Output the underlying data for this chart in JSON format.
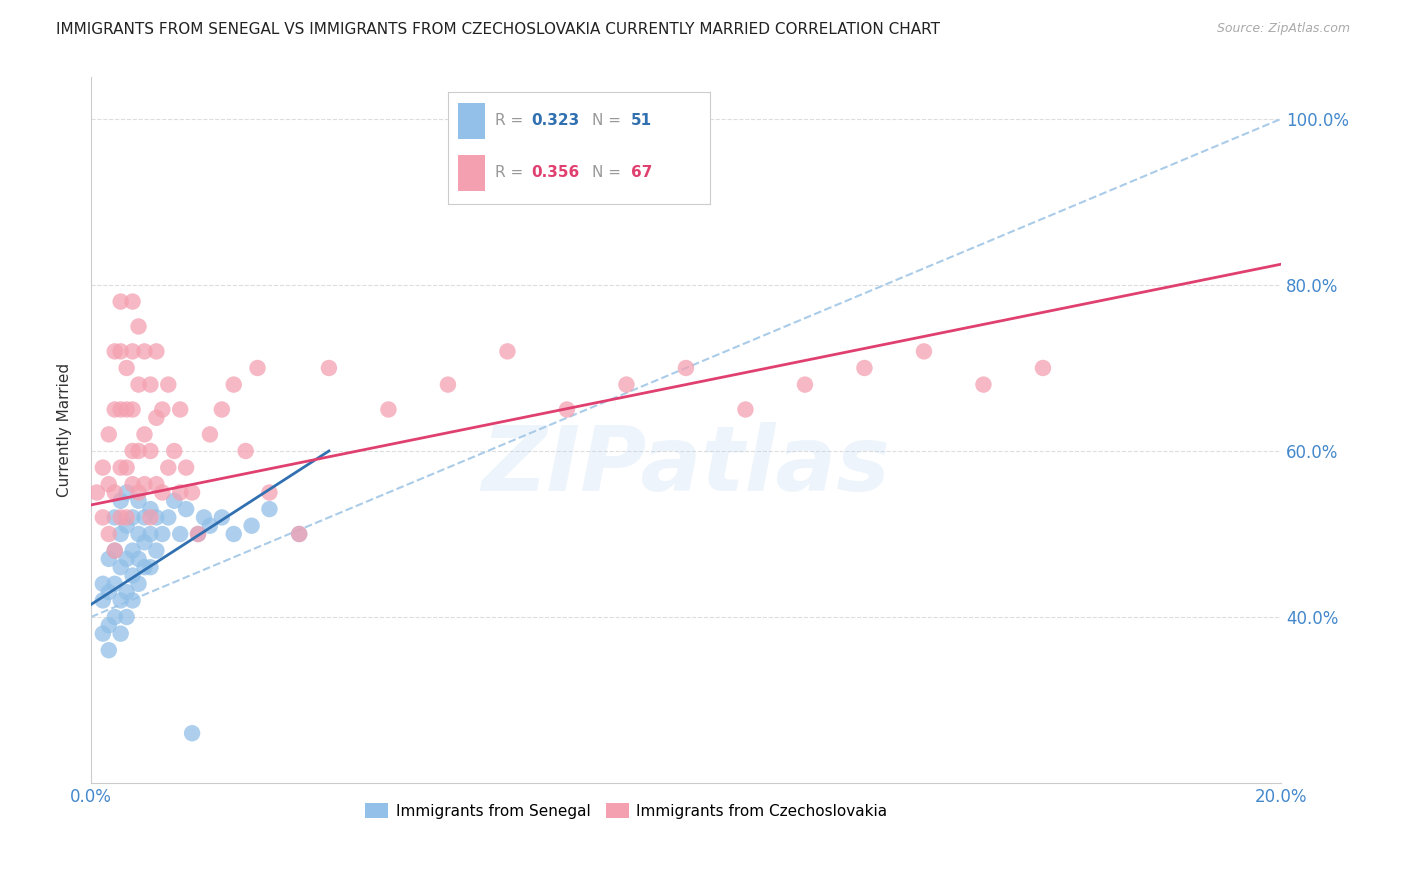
{
  "title": "IMMIGRANTS FROM SENEGAL VS IMMIGRANTS FROM CZECHOSLOVAKIA CURRENTLY MARRIED CORRELATION CHART",
  "source": "Source: ZipAtlas.com",
  "ylabel": "Currently Married",
  "xlim": [
    0.0,
    0.2
  ],
  "ylim": [
    0.2,
    1.05
  ],
  "xticks": [
    0.0,
    0.04,
    0.08,
    0.12,
    0.16,
    0.2
  ],
  "xtick_labels": [
    "0.0%",
    "",
    "",
    "",
    "",
    "20.0%"
  ],
  "ytick_labels_right": [
    "100.0%",
    "80.0%",
    "60.0%",
    "40.0%"
  ],
  "yticks_right": [
    1.0,
    0.8,
    0.6,
    0.4
  ],
  "blue_R": 0.323,
  "blue_N": 51,
  "pink_R": 0.356,
  "pink_N": 67,
  "blue_color": "#92C0E8",
  "pink_color": "#F4A0B0",
  "blue_line_color": "#3070B0",
  "pink_line_color": "#E04070",
  "dashed_line_color": "#AACCE8",
  "legend_label_blue": "Immigrants from Senegal",
  "legend_label_pink": "Immigrants from Czechoslovakia",
  "watermark": "ZIPatlas",
  "background_color": "#FFFFFF",
  "title_fontsize": 11,
  "axis_label_color": "#4488CC",
  "blue_scatter_x": [
    0.002,
    0.002,
    0.002,
    0.003,
    0.003,
    0.003,
    0.003,
    0.004,
    0.004,
    0.004,
    0.004,
    0.005,
    0.005,
    0.005,
    0.005,
    0.005,
    0.006,
    0.006,
    0.006,
    0.006,
    0.006,
    0.007,
    0.007,
    0.007,
    0.007,
    0.008,
    0.008,
    0.008,
    0.008,
    0.009,
    0.009,
    0.009,
    0.01,
    0.01,
    0.01,
    0.011,
    0.011,
    0.012,
    0.013,
    0.014,
    0.015,
    0.016,
    0.017,
    0.018,
    0.019,
    0.02,
    0.022,
    0.024,
    0.027,
    0.03,
    0.035
  ],
  "blue_scatter_y": [
    0.38,
    0.42,
    0.44,
    0.36,
    0.39,
    0.43,
    0.47,
    0.4,
    0.44,
    0.48,
    0.52,
    0.38,
    0.42,
    0.46,
    0.5,
    0.54,
    0.4,
    0.43,
    0.47,
    0.51,
    0.55,
    0.42,
    0.45,
    0.48,
    0.52,
    0.44,
    0.47,
    0.5,
    0.54,
    0.46,
    0.49,
    0.52,
    0.46,
    0.5,
    0.53,
    0.48,
    0.52,
    0.5,
    0.52,
    0.54,
    0.5,
    0.53,
    0.26,
    0.5,
    0.52,
    0.51,
    0.52,
    0.5,
    0.51,
    0.53,
    0.5
  ],
  "pink_scatter_x": [
    0.001,
    0.002,
    0.002,
    0.003,
    0.003,
    0.003,
    0.004,
    0.004,
    0.004,
    0.004,
    0.005,
    0.005,
    0.005,
    0.005,
    0.005,
    0.006,
    0.006,
    0.006,
    0.006,
    0.007,
    0.007,
    0.007,
    0.007,
    0.007,
    0.008,
    0.008,
    0.008,
    0.008,
    0.009,
    0.009,
    0.009,
    0.01,
    0.01,
    0.01,
    0.011,
    0.011,
    0.011,
    0.012,
    0.012,
    0.013,
    0.013,
    0.014,
    0.015,
    0.015,
    0.016,
    0.017,
    0.018,
    0.02,
    0.022,
    0.024,
    0.026,
    0.028,
    0.03,
    0.035,
    0.04,
    0.05,
    0.06,
    0.07,
    0.08,
    0.09,
    0.1,
    0.11,
    0.12,
    0.13,
    0.14,
    0.15,
    0.16
  ],
  "pink_scatter_y": [
    0.55,
    0.52,
    0.58,
    0.5,
    0.56,
    0.62,
    0.48,
    0.55,
    0.65,
    0.72,
    0.52,
    0.58,
    0.65,
    0.72,
    0.78,
    0.52,
    0.58,
    0.65,
    0.7,
    0.56,
    0.6,
    0.65,
    0.72,
    0.78,
    0.55,
    0.6,
    0.68,
    0.75,
    0.56,
    0.62,
    0.72,
    0.52,
    0.6,
    0.68,
    0.56,
    0.64,
    0.72,
    0.55,
    0.65,
    0.58,
    0.68,
    0.6,
    0.55,
    0.65,
    0.58,
    0.55,
    0.5,
    0.62,
    0.65,
    0.68,
    0.6,
    0.7,
    0.55,
    0.5,
    0.7,
    0.65,
    0.68,
    0.72,
    0.65,
    0.68,
    0.7,
    0.65,
    0.68,
    0.7,
    0.72,
    0.68,
    0.7
  ],
  "blue_line_x0": 0.0,
  "blue_line_y0": 0.415,
  "blue_line_x1": 0.04,
  "blue_line_y1": 0.6,
  "pink_line_x0": 0.0,
  "pink_line_y0": 0.535,
  "pink_line_x1": 0.2,
  "pink_line_y1": 0.825,
  "dashed_line_x0": 0.0,
  "dashed_line_y0": 0.4,
  "dashed_line_x1": 0.2,
  "dashed_line_y1": 1.0
}
